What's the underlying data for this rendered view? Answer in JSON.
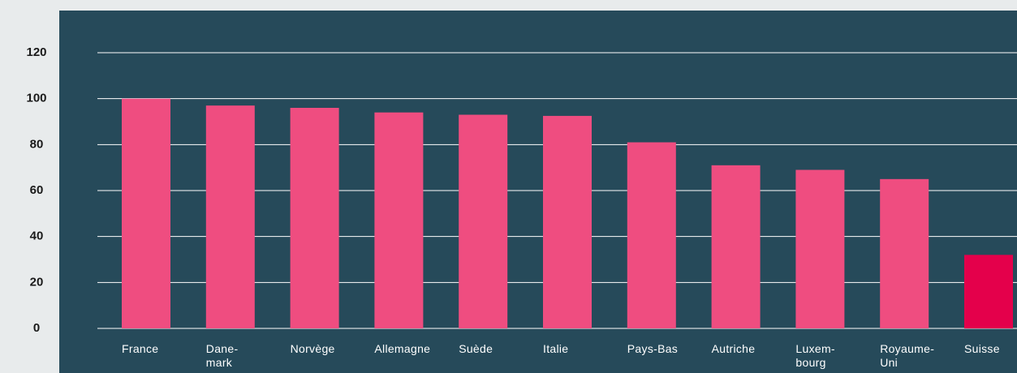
{
  "chart_data": {
    "type": "bar",
    "categories": [
      "France",
      "Dane-\nmark",
      "Norvège",
      "Allemagne",
      "Suède",
      "Italie",
      "Pays-Bas",
      "Autriche",
      "Luxem-\nbourg",
      "Royaume-\nUni",
      "Suisse"
    ],
    "values": [
      100,
      97,
      96,
      94,
      93,
      92.5,
      81,
      71,
      69,
      65,
      32
    ],
    "colors": [
      "#ef4d80",
      "#ef4d80",
      "#ef4d80",
      "#ef4d80",
      "#ef4d80",
      "#ef4d80",
      "#ef4d80",
      "#ef4d80",
      "#ef4d80",
      "#ef4d80",
      "#e4004b"
    ],
    "ylim": [
      0,
      120
    ],
    "yticks": [
      0,
      20,
      40,
      60,
      80,
      100,
      120
    ],
    "grid": true
  }
}
